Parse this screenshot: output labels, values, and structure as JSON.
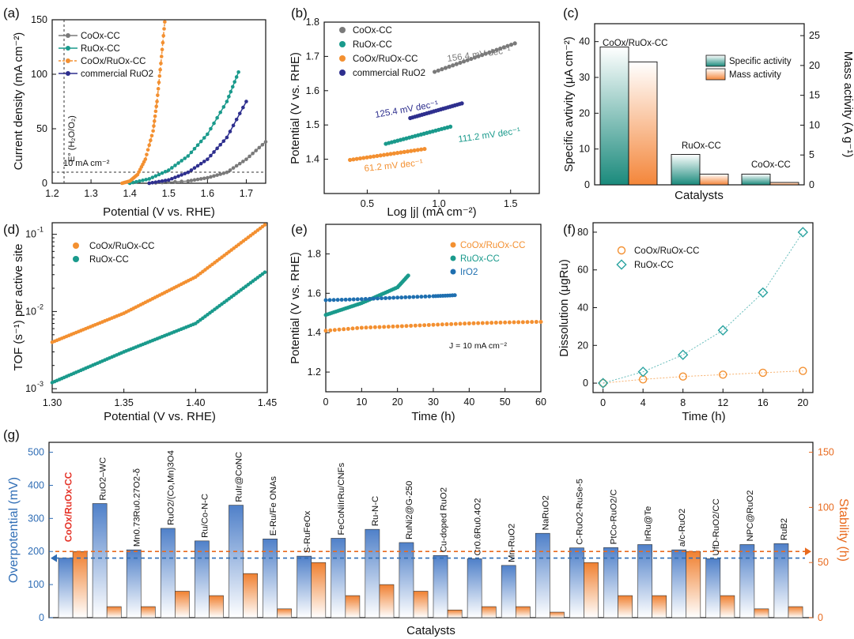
{
  "panels": {
    "a": "(a)",
    "b": "(b)",
    "c": "(c)",
    "d": "(d)",
    "e": "(e)",
    "f": "(f)",
    "g": "(g)"
  },
  "colors": {
    "gray": "#7a7a7a",
    "teal": "#1a9a8c",
    "orange": "#f39031",
    "navy": "#2e2f8e",
    "blue": "#4a7cc4",
    "red": "#e5352a"
  },
  "chart_data": [
    {
      "id": "a",
      "type": "line",
      "xlabel": "Potential (V vs. RHE)",
      "ylabel": "Current density (mA cm⁻²)",
      "xlim": [
        1.2,
        1.75
      ],
      "ylim": [
        0,
        150
      ],
      "xticks": [
        "1.2",
        "1.3",
        "1.4",
        "1.5",
        "1.6",
        "1.7"
      ],
      "yticks": [
        "0",
        "50",
        "100",
        "150"
      ],
      "annotations": {
        "ref": "E° (H₂O/O₂)",
        "hline": "10 mA cm⁻²"
      },
      "series": [
        {
          "name": "CoOx-CC",
          "x": [
            1.45,
            1.55,
            1.6,
            1.65,
            1.7,
            1.75
          ],
          "y": [
            0,
            2,
            5,
            10,
            22,
            38
          ]
        },
        {
          "name": "RuOx-CC",
          "x": [
            1.4,
            1.45,
            1.5,
            1.55,
            1.6,
            1.65,
            1.68
          ],
          "y": [
            0,
            4,
            12,
            25,
            45,
            75,
            102
          ]
        },
        {
          "name": "CoOx/RuOx-CC",
          "x": [
            1.38,
            1.4,
            1.42,
            1.44,
            1.46,
            1.47,
            1.48,
            1.49
          ],
          "y": [
            0,
            2,
            8,
            22,
            48,
            75,
            110,
            148
          ]
        },
        {
          "name": "commercial RuO2",
          "x": [
            1.45,
            1.5,
            1.55,
            1.6,
            1.65,
            1.7
          ],
          "y": [
            0,
            3,
            10,
            22,
            42,
            75
          ]
        }
      ]
    },
    {
      "id": "b",
      "type": "scatter",
      "xlabel": "Log |j| (mA cm⁻²)",
      "ylabel": "Potential (V vs. RHE)",
      "xlim": [
        0.2,
        1.7
      ],
      "ylim": [
        1.3,
        1.8
      ],
      "xticks": [
        "0.5",
        "1.0",
        "1.5"
      ],
      "yticks": [
        "1.4",
        "1.5",
        "1.6",
        "1.7",
        "1.8"
      ],
      "series": [
        {
          "name": "CoOx-CC",
          "x": [
            0.97,
            1.53
          ],
          "y": [
            1.655,
            1.738
          ],
          "label": "156.4 mV dec⁻¹"
        },
        {
          "name": "RuOx-CC",
          "x": [
            0.63,
            1.08
          ],
          "y": [
            1.445,
            1.495
          ],
          "label": "111.2 mV dec⁻¹"
        },
        {
          "name": "CoOx/RuOx-CC",
          "x": [
            0.38,
            0.9
          ],
          "y": [
            1.398,
            1.43
          ],
          "label": "61.2 mV dec⁻¹"
        },
        {
          "name": "commercial RuO2",
          "x": [
            0.8,
            1.16
          ],
          "y": [
            1.52,
            1.563
          ],
          "label": "125.4 mV dec⁻¹"
        }
      ]
    },
    {
      "id": "c",
      "type": "bar",
      "xlabel": "Catalysts",
      "ylabel": "Specific avtivity (μA cm⁻²)",
      "y2label": "Mass activity (A g⁻¹)",
      "ylim": [
        0,
        45
      ],
      "y2lim": [
        0,
        27
      ],
      "yticks": [
        "0",
        "10",
        "20",
        "30",
        "40"
      ],
      "y2ticks": [
        "0",
        "5",
        "10",
        "15",
        "20",
        "25"
      ],
      "categories": [
        "CoOx/RuOx-CC",
        "RuOx-CC",
        "CoOx-CC"
      ],
      "series": [
        {
          "name": "Specific activity",
          "values": [
            38.5,
            8.5,
            3.0
          ]
        },
        {
          "name": "Mass activity",
          "values": [
            20.6,
            1.8,
            0.4
          ]
        }
      ]
    },
    {
      "id": "d",
      "type": "line",
      "xlabel": "Potential (V vs. RHE)",
      "ylabel": "TOF (s⁻¹) per active site",
      "xlim": [
        1.3,
        1.45
      ],
      "ylim_log": [
        -3.05,
        -0.85
      ],
      "xticks": [
        "1.30",
        "1.35",
        "1.40",
        "1.45"
      ],
      "series": [
        {
          "name": "CoOx/RuOx-CC",
          "x": [
            1.3,
            1.35,
            1.4,
            1.45
          ],
          "y": [
            0.004,
            0.0095,
            0.028,
            0.14
          ]
        },
        {
          "name": "RuOx-CC",
          "x": [
            1.3,
            1.35,
            1.4,
            1.45
          ],
          "y": [
            0.0012,
            0.003,
            0.007,
            0.034
          ]
        }
      ]
    },
    {
      "id": "e",
      "type": "line",
      "xlabel": "Time (h)",
      "ylabel": "Potential (V vs. RHE)",
      "xlim": [
        0,
        60
      ],
      "ylim": [
        1.1,
        1.95
      ],
      "xticks": [
        "0",
        "10",
        "20",
        "30",
        "40",
        "50",
        "60"
      ],
      "yticks": [
        "1.2",
        "1.4",
        "1.6",
        "1.8"
      ],
      "annotation": "J = 10 mA cm⁻²",
      "series": [
        {
          "name": "CoOx/RuOx-CC",
          "x": [
            0,
            10,
            20,
            30,
            40,
            50,
            60
          ],
          "y": [
            1.41,
            1.425,
            1.432,
            1.44,
            1.447,
            1.452,
            1.455
          ]
        },
        {
          "name": "RuOx-CC",
          "x": [
            0,
            5,
            10,
            15,
            20,
            23
          ],
          "y": [
            1.49,
            1.52,
            1.55,
            1.59,
            1.63,
            1.69
          ]
        },
        {
          "name": "IrO2",
          "x": [
            0,
            10,
            20,
            30,
            36
          ],
          "y": [
            1.565,
            1.57,
            1.578,
            1.585,
            1.59
          ]
        }
      ]
    },
    {
      "id": "f",
      "type": "scatter",
      "xlabel": "Time (h)",
      "ylabel": "Dissolution (μgRu)",
      "xlim": [
        -1,
        21
      ],
      "ylim": [
        -5,
        85
      ],
      "xticks": [
        "0",
        "4",
        "8",
        "12",
        "16",
        "20"
      ],
      "yticks": [
        "0",
        "20",
        "40",
        "60",
        "80"
      ],
      "series": [
        {
          "name": "CoOx/RuOx-CC",
          "x": [
            0,
            4,
            8,
            12,
            16,
            20
          ],
          "y": [
            0,
            2,
            3.5,
            4.5,
            5.5,
            6.5
          ]
        },
        {
          "name": "RuOx-CC",
          "x": [
            0,
            4,
            8,
            12,
            16,
            20
          ],
          "y": [
            0,
            6,
            15,
            28,
            48,
            80
          ]
        }
      ]
    },
    {
      "id": "g",
      "type": "bar",
      "xlabel": "Catalysts",
      "ylabel": "Overpotential (mV)",
      "y2label": "Stability (h)",
      "ylim": [
        0,
        530
      ],
      "y2lim": [
        0,
        159
      ],
      "yticks": [
        "0",
        "100",
        "200",
        "300",
        "400",
        "500"
      ],
      "y2ticks": [
        "0",
        "50",
        "100",
        "150"
      ],
      "hline_overpotential": 180,
      "hline_stability": 60,
      "categories": [
        "CoOx/RuOx-CC",
        "RuO2–WC",
        "Mn0.73Ru0.27O2-δ",
        "RuO2/(Co,Mn)3O4",
        "Ru/Co-N-C",
        "RuIr@CoNC",
        "E-Ru/Fe ONAs",
        "S-RuFeOx",
        "FeCoNiIrRu/CNFs",
        "Ru-N-C",
        "RuNi2@G-250",
        "Cu-doped RuO2",
        "Cr0.6Ru0.4O2",
        "Mn-RuO2",
        "NaRuO2",
        "C-RuO2-RuSe-5",
        "PtCo-RuO2/C",
        "IrRu@Te",
        "a/c-RuO2",
        "UfD-RuO2/CC",
        "NPC@RuO2",
        "RuB2"
      ],
      "series": [
        {
          "name": "Overpotential",
          "values": [
            180,
            345,
            205,
            270,
            232,
            340,
            238,
            186,
            240,
            267,
            227,
            188,
            178,
            158,
            255,
            211,
            212,
            221,
            205,
            178,
            221,
            224
          ]
        },
        {
          "name": "Stability",
          "values": [
            60,
            10,
            10,
            24,
            20,
            40,
            8,
            50,
            20,
            30,
            24,
            7,
            10,
            10,
            5,
            50,
            20,
            20,
            60,
            20,
            8,
            10
          ]
        }
      ]
    }
  ]
}
